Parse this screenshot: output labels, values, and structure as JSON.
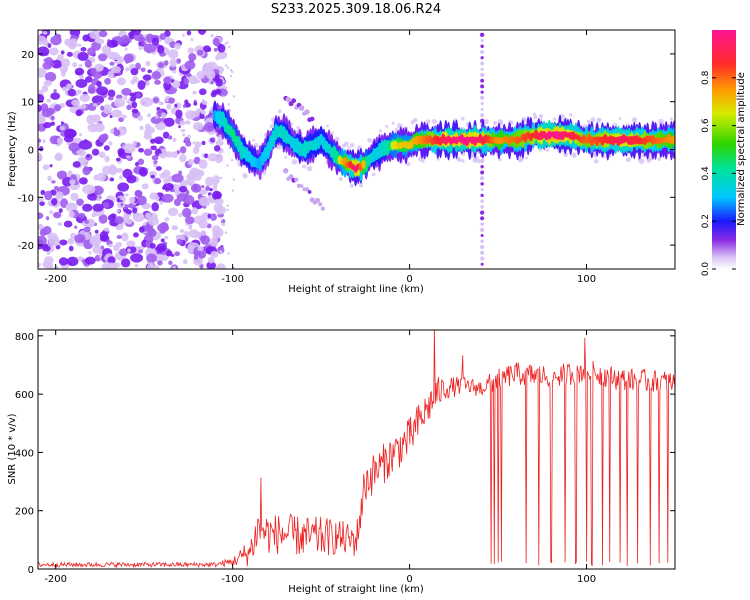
{
  "title": "S233.2025.309.18.06.R24",
  "colors": {
    "snr_line": "#ee2222",
    "spectro_ramp": [
      "#ffffff",
      "#c9a6f2",
      "#7a1cf0",
      "#1a1aff",
      "#00c8ff",
      "#00e29a",
      "#2ad400",
      "#d6ec00",
      "#ff9a00",
      "#ff2a2a",
      "#ff1493"
    ]
  },
  "chart_data": [
    {
      "type": "heatmap",
      "title": "S233.2025.309.18.06.R24",
      "xlabel": "Height of straight line (km)",
      "ylabel": "Frequency (Hz)",
      "xlim": [
        -210,
        150
      ],
      "ylim": [
        -25,
        25
      ],
      "xticks": [
        -200,
        -100,
        0,
        100
      ],
      "yticks": [
        -20,
        -10,
        0,
        10,
        20
      ],
      "xtick_labels": [
        "-200",
        "-100",
        "0",
        "100"
      ],
      "ytick_labels": [
        "-20",
        "-10",
        "0",
        "10",
        "20"
      ],
      "colorbar": {
        "label": "Normalized spectral amplitude",
        "range": [
          0,
          1
        ],
        "ticks": [
          0.0,
          0.2,
          0.4,
          0.6,
          0.8
        ],
        "tick_labels": [
          "0.0",
          "0.2",
          "0.4",
          "0.6",
          "0.8"
        ]
      },
      "noise_region_x": [
        -210,
        -107
      ],
      "ridge": {
        "x": [
          -110,
          -105,
          -100,
          -95,
          -90,
          -85,
          -80,
          -75,
          -70,
          -65,
          -60,
          -55,
          -50,
          -45,
          -40,
          -35,
          -30,
          -25,
          -20,
          -15,
          -10,
          -5,
          0,
          5,
          10,
          20,
          30,
          40,
          50,
          60,
          70,
          80,
          90,
          100,
          110,
          120,
          130,
          140,
          150
        ],
        "freq": [
          7,
          6,
          3,
          0,
          -2,
          -3,
          0,
          4,
          3,
          1,
          0,
          1,
          2,
          0,
          -2,
          -3,
          -4,
          -3,
          -1,
          0,
          1,
          1,
          1,
          2,
          2,
          2,
          2,
          2,
          2,
          2,
          3,
          3,
          3,
          2,
          2,
          2,
          2,
          2,
          2
        ],
        "amplitude": [
          0.4,
          0.5,
          0.6,
          0.5,
          0.45,
          0.4,
          0.45,
          0.5,
          0.5,
          0.45,
          0.5,
          0.5,
          0.45,
          0.5,
          0.6,
          0.75,
          0.9,
          0.6,
          0.45,
          0.5,
          0.6,
          0.65,
          0.65,
          0.7,
          0.75,
          0.85,
          0.9,
          0.85,
          0.7,
          0.75,
          0.8,
          0.9,
          0.85,
          0.75,
          0.8,
          0.85,
          0.8,
          0.75,
          0.7
        ]
      },
      "branches": [
        {
          "x": [
            -70,
            -62,
            -55
          ],
          "freq": [
            11,
            9,
            6
          ]
        },
        {
          "x": [
            -70,
            -62,
            -55,
            -48
          ],
          "freq": [
            -5,
            -7,
            -10,
            -13
          ]
        }
      ],
      "vertical_streak_x": 41
    },
    {
      "type": "line",
      "xlabel": "Height of straight line (km)",
      "ylabel": "SNR (10 * v/v)",
      "xlim": [
        -210,
        150
      ],
      "ylim": [
        0,
        820
      ],
      "xticks": [
        -200,
        -100,
        0,
        100
      ],
      "yticks": [
        0,
        200,
        400,
        600,
        800
      ],
      "xtick_labels": [
        "-200",
        "-100",
        "0",
        "100"
      ],
      "ytick_labels": [
        "0",
        "200",
        "400",
        "600",
        "800"
      ],
      "trend": {
        "x": [
          -210,
          -110,
          -100,
          -90,
          -85,
          -80,
          -70,
          -60,
          -50,
          -40,
          -35,
          -30,
          -25,
          -20,
          -15,
          -10,
          -5,
          0,
          5,
          10,
          15,
          20,
          30,
          40,
          50,
          60,
          80,
          100,
          120,
          150
        ],
        "y": [
          15,
          15,
          25,
          60,
          150,
          120,
          120,
          110,
          110,
          110,
          100,
          100,
          300,
          330,
          360,
          390,
          420,
          450,
          500,
          550,
          600,
          620,
          630,
          620,
          650,
          670,
          660,
          680,
          650,
          640
        ],
        "noise": [
          8,
          8,
          15,
          50,
          80,
          70,
          70,
          70,
          70,
          60,
          60,
          60,
          80,
          70,
          70,
          70,
          70,
          70,
          70,
          60,
          60,
          40,
          30,
          30,
          40,
          40,
          40,
          40,
          40,
          40
        ]
      },
      "spikes": [
        {
          "x": -84,
          "y": 310
        },
        {
          "x": 14,
          "y": 830
        },
        {
          "x": 30,
          "y": 730
        },
        {
          "x": 99,
          "y": 790
        }
      ],
      "dropouts_x": [
        46,
        48,
        50,
        52,
        66,
        73,
        80,
        88,
        94,
        100,
        103,
        109,
        113,
        119,
        123,
        129,
        136,
        141,
        146
      ]
    }
  ]
}
